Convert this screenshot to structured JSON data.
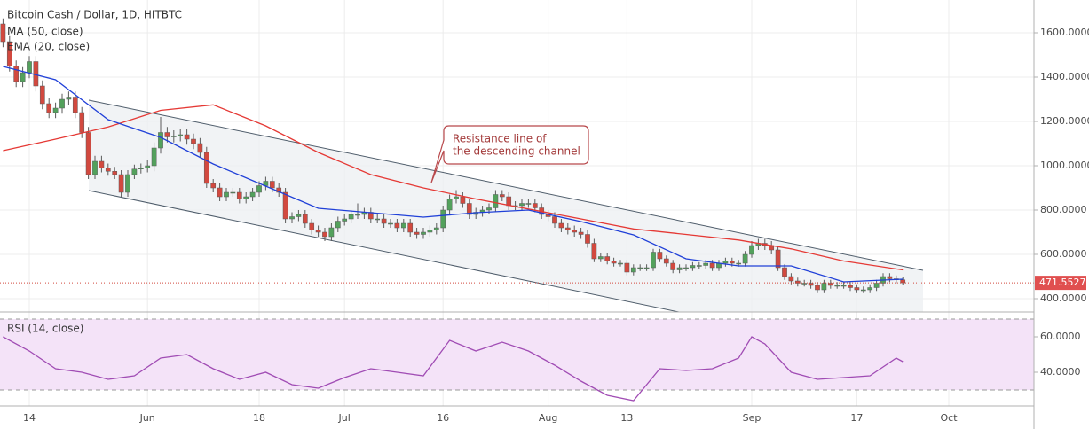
{
  "chart_data": [
    {
      "type": "candlestick",
      "title": "Bitcoin Cash / Dollar, 1D, HITBTC",
      "x": [
        "May 10",
        "May 11",
        "May 12",
        "May 13",
        "May 14",
        "May 15",
        "May 16",
        "May 17",
        "May 18",
        "May 19",
        "May 20",
        "May 21",
        "May 22",
        "May 23",
        "May 24",
        "May 25",
        "May 26",
        "May 27",
        "May 28",
        "May 29",
        "May 30",
        "May 31",
        "Jun 1",
        "Jun 2",
        "Jun 3",
        "Jun 4",
        "Jun 5",
        "Jun 6",
        "Jun 7",
        "Jun 8",
        "Jun 9",
        "Jun 10",
        "Jun 11",
        "Jun 12",
        "Jun 13",
        "Jun 14",
        "Jun 15",
        "Jun 16",
        "Jun 17",
        "Jun 18",
        "Jun 19",
        "Jun 20",
        "Jun 21",
        "Jun 22",
        "Jun 23",
        "Jun 24",
        "Jun 25",
        "Jun 26",
        "Jun 27",
        "Jun 28",
        "Jun 29",
        "Jun 30",
        "Jul 1",
        "Jul 2",
        "Jul 3",
        "Jul 4",
        "Jul 5",
        "Jul 6",
        "Jul 7",
        "Jul 8",
        "Jul 9",
        "Jul 10",
        "Jul 11",
        "Jul 12",
        "Jul 13",
        "Jul 14",
        "Jul 15",
        "Jul 16",
        "Jul 17",
        "Jul 18",
        "Jul 19",
        "Jul 20",
        "Jul 21",
        "Jul 22",
        "Jul 23",
        "Jul 24",
        "Jul 25",
        "Jul 26",
        "Jul 27",
        "Jul 28",
        "Jul 29",
        "Jul 30",
        "Jul 31",
        "Aug 1",
        "Aug 2",
        "Aug 3",
        "Aug 4",
        "Aug 5",
        "Aug 6",
        "Aug 7",
        "Aug 8",
        "Aug 9",
        "Aug 10",
        "Aug 11",
        "Aug 12",
        "Aug 13",
        "Aug 14",
        "Aug 15",
        "Aug 16",
        "Aug 17",
        "Aug 18",
        "Aug 19",
        "Aug 20",
        "Aug 21",
        "Aug 22",
        "Aug 23",
        "Aug 24",
        "Aug 25",
        "Aug 26",
        "Aug 27",
        "Aug 28",
        "Aug 29",
        "Aug 30",
        "Aug 31",
        "Sep 1",
        "Sep 2",
        "Sep 3",
        "Sep 4",
        "Sep 5",
        "Sep 6",
        "Sep 7",
        "Sep 8",
        "Sep 9",
        "Sep 10",
        "Sep 11",
        "Sep 12",
        "Sep 13",
        "Sep 14",
        "Sep 15",
        "Sep 16",
        "Sep 17",
        "Sep 18",
        "Sep 19",
        "Sep 20",
        "Sep 21",
        "Sep 22",
        "Sep 23",
        "Sep 24",
        "Sep 25",
        "Sep 26",
        "Sep 27",
        "Sep 28",
        "Sep 29",
        "Sep 30",
        "Oct 1"
      ],
      "open": [
        1640,
        1560,
        1450,
        1380,
        1420,
        1470,
        1360,
        1280,
        1240,
        1260,
        1300,
        1310,
        1240,
        1150,
        960,
        1020,
        990,
        975,
        960,
        880,
        960,
        985,
        990,
        1000,
        1080,
        1150,
        1130,
        1135,
        1140,
        1120,
        1100,
        1060,
        920,
        900,
        860,
        880,
        880,
        850,
        860,
        880,
        910,
        930,
        900,
        880,
        760,
        770,
        780,
        740,
        710,
        700,
        680,
        720,
        750,
        760,
        780,
        780,
        790,
        760,
        760,
        740,
        740,
        720,
        740,
        700,
        690,
        700,
        710,
        720,
        800,
        850,
        860,
        830,
        780,
        790,
        800,
        810,
        870,
        860,
        820,
        820,
        830,
        830,
        810,
        780,
        770,
        740,
        720,
        710,
        700,
        690,
        650,
        580,
        590,
        570,
        560,
        560,
        520,
        540,
        540,
        540,
        610,
        580,
        560,
        530,
        540,
        540,
        550,
        550,
        560,
        540,
        560,
        570,
        560,
        560,
        600,
        640,
        650,
        640,
        620,
        540,
        500,
        480,
        470,
        470,
        460,
        440,
        470,
        460,
        460,
        460,
        450,
        440,
        440,
        450,
        470,
        500,
        490,
        485,
        null,
        null,
        null,
        null,
        null,
        null,
        null
      ],
      "high": [
        1665,
        1585,
        1475,
        1445,
        1495,
        1495,
        1385,
        1305,
        1285,
        1325,
        1335,
        1335,
        1265,
        1175,
        1045,
        1045,
        1010,
        995,
        980,
        980,
        1005,
        1010,
        1025,
        1105,
        1220,
        1175,
        1160,
        1165,
        1165,
        1145,
        1125,
        1085,
        940,
        920,
        900,
        900,
        900,
        880,
        900,
        930,
        950,
        950,
        920,
        900,
        790,
        800,
        800,
        760,
        730,
        720,
        740,
        770,
        780,
        800,
        830,
        810,
        810,
        780,
        780,
        760,
        760,
        760,
        760,
        720,
        720,
        730,
        740,
        820,
        870,
        890,
        880,
        850,
        810,
        820,
        830,
        890,
        890,
        880,
        840,
        850,
        850,
        850,
        830,
        800,
        790,
        760,
        740,
        730,
        720,
        710,
        670,
        605,
        605,
        585,
        575,
        575,
        555,
        555,
        555,
        625,
        625,
        595,
        575,
        555,
        555,
        565,
        565,
        575,
        575,
        575,
        585,
        585,
        575,
        615,
        660,
        670,
        670,
        660,
        640,
        555,
        515,
        495,
        485,
        485,
        475,
        485,
        485,
        475,
        475,
        475,
        465,
        455,
        465,
        485,
        515,
        515,
        505,
        500,
        null,
        null,
        null,
        null,
        null,
        null,
        null
      ],
      "low": [
        1535,
        1425,
        1355,
        1355,
        1395,
        1335,
        1255,
        1215,
        1215,
        1235,
        1275,
        1215,
        1125,
        940,
        940,
        970,
        955,
        940,
        860,
        860,
        940,
        965,
        970,
        975,
        1055,
        1105,
        1105,
        1110,
        1095,
        1075,
        1035,
        900,
        880,
        840,
        840,
        860,
        830,
        830,
        840,
        860,
        890,
        880,
        860,
        740,
        740,
        750,
        720,
        690,
        680,
        660,
        660,
        700,
        730,
        740,
        760,
        760,
        740,
        740,
        720,
        720,
        700,
        700,
        680,
        670,
        670,
        680,
        690,
        700,
        780,
        830,
        810,
        760,
        760,
        770,
        780,
        790,
        840,
        800,
        800,
        800,
        810,
        790,
        760,
        750,
        720,
        700,
        690,
        680,
        670,
        630,
        565,
        565,
        555,
        545,
        545,
        505,
        505,
        525,
        525,
        525,
        565,
        545,
        515,
        515,
        525,
        525,
        535,
        535,
        525,
        525,
        545,
        545,
        545,
        545,
        585,
        620,
        620,
        600,
        525,
        485,
        465,
        455,
        455,
        445,
        425,
        425,
        445,
        445,
        445,
        435,
        425,
        425,
        425,
        435,
        455,
        475,
        470,
        460,
        null,
        null,
        null,
        null,
        null,
        null,
        null
      ],
      "close": [
        1560,
        1450,
        1380,
        1420,
        1470,
        1360,
        1280,
        1240,
        1260,
        1300,
        1310,
        1240,
        1150,
        960,
        1020,
        990,
        975,
        960,
        880,
        960,
        985,
        990,
        1000,
        1080,
        1150,
        1130,
        1135,
        1140,
        1120,
        1100,
        1060,
        920,
        900,
        860,
        880,
        880,
        850,
        860,
        880,
        910,
        930,
        900,
        880,
        760,
        770,
        780,
        740,
        710,
        700,
        680,
        720,
        750,
        760,
        780,
        780,
        790,
        760,
        760,
        740,
        740,
        720,
        740,
        700,
        690,
        700,
        710,
        720,
        800,
        850,
        860,
        830,
        780,
        790,
        800,
        810,
        870,
        860,
        820,
        820,
        830,
        830,
        810,
        780,
        770,
        740,
        720,
        710,
        700,
        690,
        650,
        580,
        590,
        570,
        560,
        560,
        520,
        540,
        540,
        540,
        610,
        580,
        560,
        530,
        540,
        540,
        550,
        550,
        560,
        540,
        560,
        570,
        560,
        560,
        600,
        640,
        650,
        640,
        620,
        540,
        500,
        480,
        470,
        470,
        460,
        440,
        470,
        460,
        460,
        460,
        450,
        440,
        440,
        450,
        470,
        500,
        490,
        485,
        471.5527,
        null,
        null,
        null,
        null,
        null,
        null,
        null
      ],
      "up_color": "#53a15c",
      "down_color": "#d2493f",
      "series": [
        {
          "name": "MA (50, close)",
          "color": "#e53935",
          "x": [
            "May 10",
            "May 18",
            "May 26",
            "Jun 3",
            "Jun 11",
            "Jun 19",
            "Jun 27",
            "Jul 5",
            "Jul 13",
            "Jul 21",
            "Jul 29",
            "Aug 6",
            "Aug 14",
            "Aug 22",
            "Aug 30",
            "Sep 7",
            "Sep 15",
            "Sep 24"
          ],
          "values": [
            1068,
            1120,
            1175,
            1250,
            1275,
            1180,
            1060,
            960,
            900,
            850,
            805,
            760,
            715,
            690,
            665,
            625,
            570,
            530
          ]
        },
        {
          "name": "EMA (20, close)",
          "color": "#2040d8",
          "x": [
            "May 10",
            "May 18",
            "May 26",
            "Jun 3",
            "Jun 11",
            "Jun 19",
            "Jun 27",
            "Jul 5",
            "Jul 13",
            "Jul 21",
            "Jul 29",
            "Aug 6",
            "Aug 14",
            "Aug 22",
            "Aug 30",
            "Sep 7",
            "Sep 15",
            "Sep 24"
          ],
          "values": [
            1448,
            1388,
            1208,
            1128,
            1008,
            908,
            808,
            788,
            768,
            788,
            800,
            748,
            688,
            580,
            548,
            548,
            476,
            488
          ]
        }
      ],
      "ylim": [
        340,
        1748
      ],
      "yticks": [
        {
          "value": 400,
          "label": "400.0000"
        },
        {
          "value": 600,
          "label": "600.0000"
        },
        {
          "value": 800,
          "label": "800.0000"
        },
        {
          "value": 1000,
          "label": "1000.0000"
        },
        {
          "value": 1200,
          "label": "1200.0000"
        },
        {
          "value": 1400,
          "label": "1400.0000"
        },
        {
          "value": 1600,
          "label": "1600.0000"
        }
      ],
      "xticks": [
        {
          "value": "May 14",
          "label": "14"
        },
        {
          "value": "Jun 1",
          "label": "Jun"
        },
        {
          "value": "Jun 18",
          "label": "18"
        },
        {
          "value": "Jul 1",
          "label": "Jul"
        },
        {
          "value": "Jul 16",
          "label": "16"
        },
        {
          "value": "Aug 1",
          "label": "Aug"
        },
        {
          "value": "Aug 13",
          "label": "13"
        },
        {
          "value": "Sep 1",
          "label": "Sep"
        },
        {
          "value": "Sep 17",
          "label": "17"
        },
        {
          "value": "Oct 1",
          "label": "Oct"
        }
      ],
      "grid": true,
      "annotation": [
        "Resistance line of",
        "the descending channel"
      ]
    },
    {
      "type": "line",
      "title": "RSI (14, close)",
      "series": [
        {
          "color": "#a04cb4",
          "x": [
            "May 10",
            "May 14",
            "May 18",
            "May 22",
            "May 26",
            "May 30",
            "Jun 3",
            "Jun 7",
            "Jun 11",
            "Jun 15",
            "Jun 19",
            "Jun 23",
            "Jun 27",
            "Jul 1",
            "Jul 5",
            "Jul 9",
            "Jul 13",
            "Jul 17",
            "Jul 21",
            "Jul 25",
            "Jul 29",
            "Aug 2",
            "Aug 6",
            "Aug 10",
            "Aug 14",
            "Aug 18",
            "Aug 22",
            "Aug 26",
            "Aug 30",
            "Sep 1",
            "Sep 3",
            "Sep 7",
            "Sep 11",
            "Sep 15",
            "Sep 19",
            "Sep 23",
            "Sep 24"
          ],
          "values": [
            60,
            52,
            42,
            40,
            36,
            38,
            48,
            50,
            42,
            36,
            40,
            33,
            31,
            37,
            42,
            40,
            38,
            58,
            52,
            57,
            52,
            44,
            35,
            27,
            24,
            42,
            41,
            42,
            48,
            60,
            56,
            40,
            36,
            37,
            38,
            48,
            46
          ]
        }
      ],
      "ylim": [
        21,
        74
      ],
      "yticks": [
        {
          "value": 40,
          "label": "40.0000"
        },
        {
          "value": 60,
          "label": "60.0000"
        }
      ],
      "bands": [
        30,
        70
      ],
      "band_color": "#f4e3f8"
    }
  ]
}
